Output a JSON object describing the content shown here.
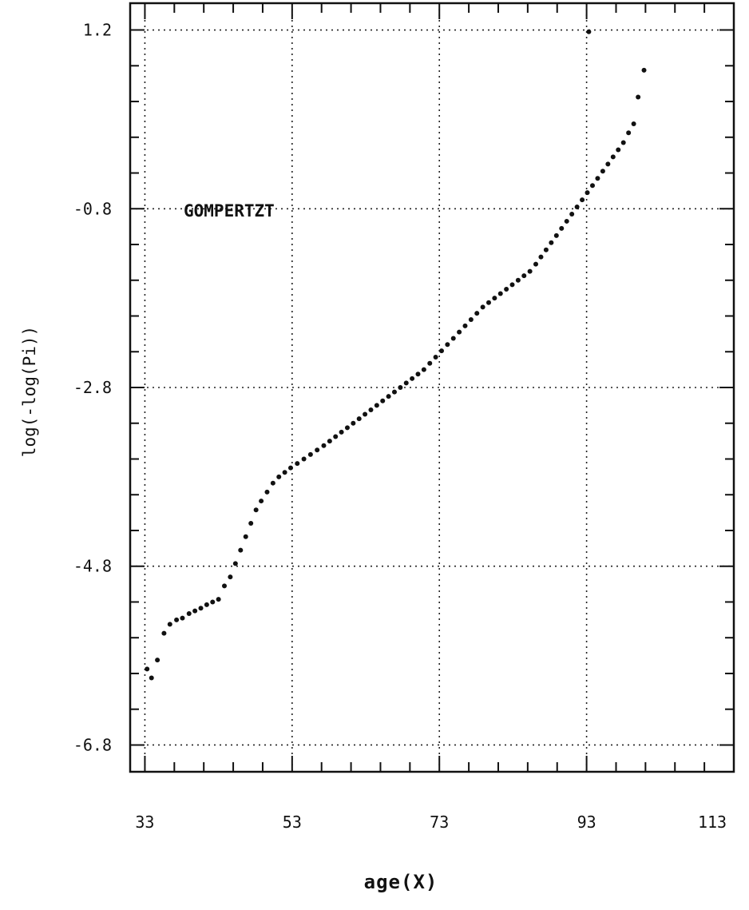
{
  "chart_data": {
    "type": "scatter",
    "title": "",
    "xlabel": "age(X)",
    "ylabel": "log(-log(Pi))",
    "x_ticks": [
      "33",
      "53",
      "73",
      "93",
      "113"
    ],
    "y_ticks": [
      "1.2",
      "-0.8",
      "-2.8",
      "-4.8",
      "-6.8"
    ],
    "xlim": [
      31,
      113
    ],
    "ylim": [
      -7.1,
      1.5
    ],
    "grid": true,
    "annotation": "GOMPERTZT",
    "series": [
      {
        "x": [
          33.3,
          33.9,
          34.7,
          35.6,
          36.4,
          37.3,
          38.1,
          39.0,
          39.8,
          40.6,
          41.4,
          42.2,
          43.0,
          43.8,
          44.6,
          45.3,
          46.0,
          46.7,
          47.4,
          48.1,
          48.8,
          49.6,
          50.4,
          51.2,
          52.0,
          52.8,
          53.7,
          54.6,
          55.5,
          56.4,
          57.3,
          58.1,
          58.9,
          59.7,
          60.5,
          61.3,
          62.1,
          62.9,
          63.7,
          64.5,
          65.3,
          66.1,
          66.9,
          67.7,
          68.5,
          69.3,
          70.1,
          70.9,
          71.7,
          72.5,
          73.3,
          74.1,
          74.9,
          75.7,
          76.5,
          77.3,
          78.1,
          78.9,
          79.7,
          80.5,
          81.3,
          82.1,
          82.9,
          83.7,
          84.5,
          85.3,
          86.1,
          86.8,
          87.5,
          88.2,
          88.9,
          89.6,
          90.3,
          91.0,
          91.7,
          92.4,
          93.1,
          93.8,
          94.5,
          95.2,
          95.9,
          96.6,
          97.3,
          98.0,
          98.7,
          99.4,
          100.0,
          100.8,
          93.3
        ],
        "y": [
          -5.95,
          -6.05,
          -5.85,
          -5.55,
          -5.45,
          -5.4,
          -5.38,
          -5.33,
          -5.3,
          -5.27,
          -5.23,
          -5.2,
          -5.17,
          -5.02,
          -4.92,
          -4.77,
          -4.62,
          -4.47,
          -4.32,
          -4.17,
          -4.07,
          -3.97,
          -3.87,
          -3.8,
          -3.75,
          -3.7,
          -3.65,
          -3.6,
          -3.55,
          -3.5,
          -3.45,
          -3.4,
          -3.35,
          -3.3,
          -3.25,
          -3.2,
          -3.15,
          -3.1,
          -3.05,
          -3.0,
          -2.95,
          -2.9,
          -2.85,
          -2.8,
          -2.75,
          -2.7,
          -2.65,
          -2.6,
          -2.53,
          -2.46,
          -2.39,
          -2.32,
          -2.25,
          -2.18,
          -2.11,
          -2.04,
          -1.97,
          -1.9,
          -1.85,
          -1.8,
          -1.75,
          -1.7,
          -1.65,
          -1.6,
          -1.55,
          -1.5,
          -1.42,
          -1.34,
          -1.26,
          -1.18,
          -1.1,
          -1.02,
          -0.94,
          -0.86,
          -0.78,
          -0.7,
          -0.62,
          -0.54,
          -0.46,
          -0.38,
          -0.3,
          -0.22,
          -0.14,
          -0.06,
          0.05,
          0.15,
          0.45,
          0.75,
          1.18
        ]
      }
    ]
  }
}
